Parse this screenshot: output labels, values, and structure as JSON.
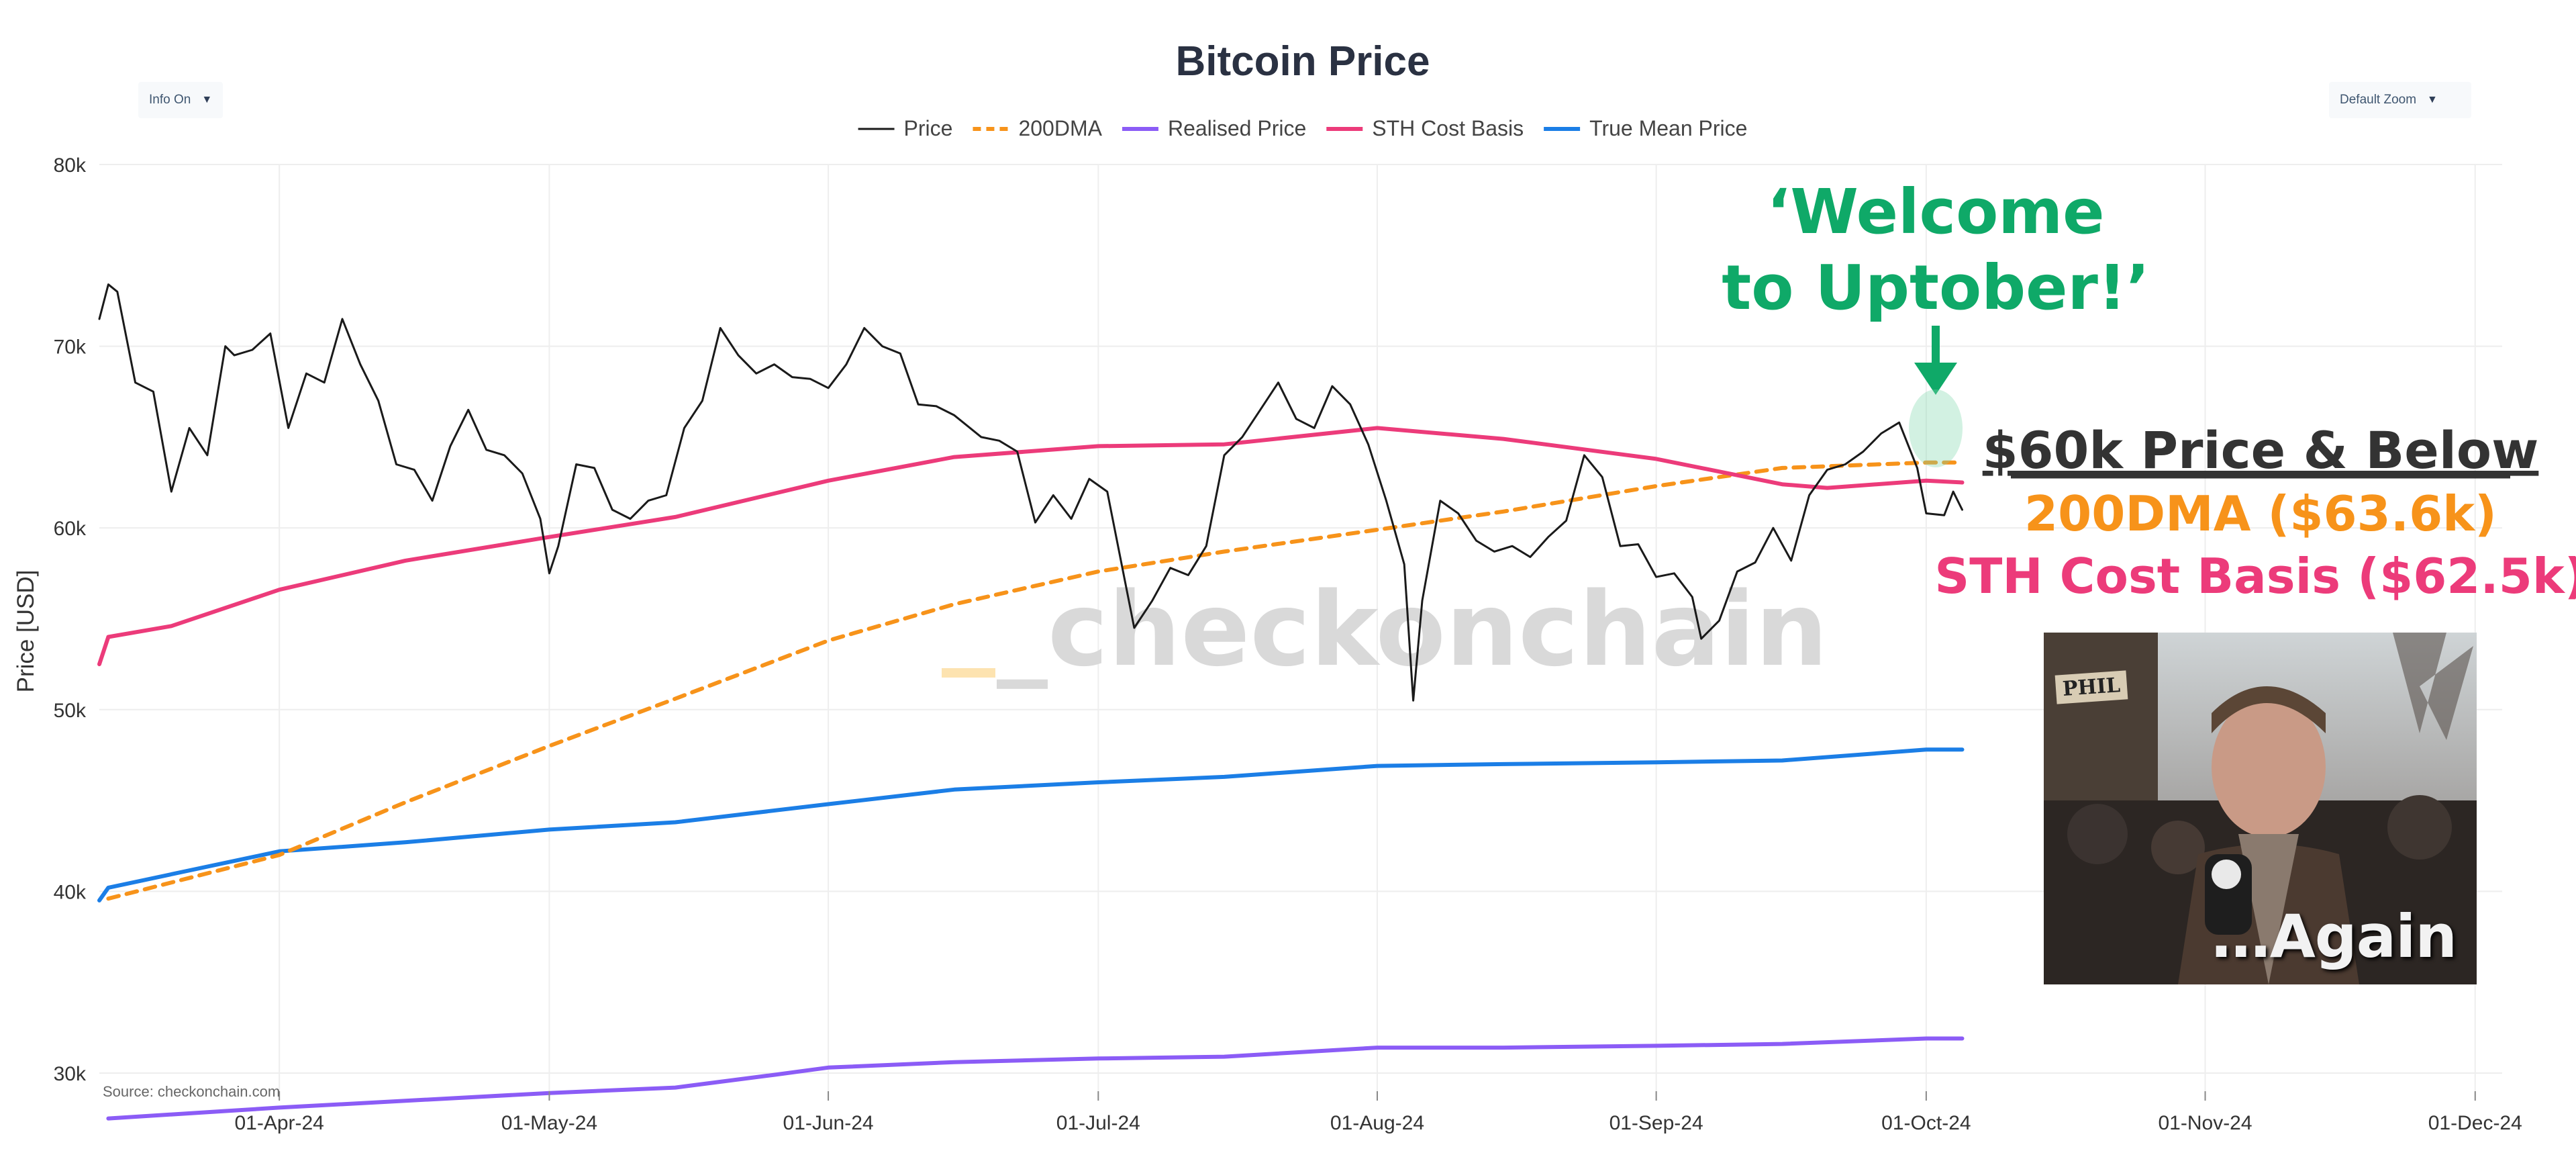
{
  "header": {
    "info_dropdown": "Info On",
    "zoom_dropdown": "Default Zoom"
  },
  "chart_data": {
    "type": "line",
    "title": "Bitcoin Price",
    "ylabel": "Price [USD]",
    "xlabel": "",
    "ylim": [
      29000,
      80000
    ],
    "xlim": [
      "2024-03-12",
      "2024-12-04"
    ],
    "y_scale": "linear",
    "grid": true,
    "legend_position": "top-center",
    "y_ticks": [
      30000,
      40000,
      50000,
      60000,
      70000,
      80000
    ],
    "y_tick_labels": [
      "30k",
      "40k",
      "50k",
      "60k",
      "70k",
      "80k"
    ],
    "x_ticks": [
      "2024-04-01",
      "2024-05-01",
      "2024-06-01",
      "2024-07-01",
      "2024-08-01",
      "2024-09-01",
      "2024-10-01",
      "2024-11-01",
      "2024-12-01"
    ],
    "x_tick_labels": [
      "01-Apr-24",
      "01-May-24",
      "01-Jun-24",
      "01-Jul-24",
      "01-Aug-24",
      "01-Sep-24",
      "01-Oct-24",
      "01-Nov-24",
      "01-Dec-24"
    ],
    "source": "Source: checkonchain.com",
    "watermark": "_checkonchain",
    "series": [
      {
        "name": "Price",
        "color": "#1a1a1a",
        "style": "solid",
        "points": [
          [
            "2024-03-12",
            71500
          ],
          [
            "2024-03-13",
            73400
          ],
          [
            "2024-03-14",
            73000
          ],
          [
            "2024-03-16",
            68000
          ],
          [
            "2024-03-18",
            67500
          ],
          [
            "2024-03-20",
            62000
          ],
          [
            "2024-03-22",
            65500
          ],
          [
            "2024-03-24",
            64000
          ],
          [
            "2024-03-26",
            70000
          ],
          [
            "2024-03-27",
            69500
          ],
          [
            "2024-03-29",
            69800
          ],
          [
            "2024-03-31",
            70700
          ],
          [
            "2024-04-02",
            65500
          ],
          [
            "2024-04-04",
            68500
          ],
          [
            "2024-04-06",
            68000
          ],
          [
            "2024-04-08",
            71500
          ],
          [
            "2024-04-10",
            69000
          ],
          [
            "2024-04-12",
            67000
          ],
          [
            "2024-04-14",
            63500
          ],
          [
            "2024-04-16",
            63200
          ],
          [
            "2024-04-18",
            61500
          ],
          [
            "2024-04-20",
            64500
          ],
          [
            "2024-04-22",
            66500
          ],
          [
            "2024-04-24",
            64300
          ],
          [
            "2024-04-26",
            64000
          ],
          [
            "2024-04-28",
            63000
          ],
          [
            "2024-04-30",
            60500
          ],
          [
            "2024-05-01",
            57500
          ],
          [
            "2024-05-02",
            59000
          ],
          [
            "2024-05-04",
            63500
          ],
          [
            "2024-05-06",
            63300
          ],
          [
            "2024-05-08",
            61000
          ],
          [
            "2024-05-10",
            60500
          ],
          [
            "2024-05-12",
            61500
          ],
          [
            "2024-05-14",
            61800
          ],
          [
            "2024-05-16",
            65500
          ],
          [
            "2024-05-18",
            67000
          ],
          [
            "2024-05-20",
            71000
          ],
          [
            "2024-05-22",
            69500
          ],
          [
            "2024-05-24",
            68500
          ],
          [
            "2024-05-26",
            69000
          ],
          [
            "2024-05-28",
            68300
          ],
          [
            "2024-05-30",
            68200
          ],
          [
            "2024-06-01",
            67700
          ],
          [
            "2024-06-03",
            69000
          ],
          [
            "2024-06-05",
            71000
          ],
          [
            "2024-06-07",
            70000
          ],
          [
            "2024-06-09",
            69600
          ],
          [
            "2024-06-11",
            66800
          ],
          [
            "2024-06-13",
            66700
          ],
          [
            "2024-06-15",
            66200
          ],
          [
            "2024-06-18",
            65000
          ],
          [
            "2024-06-20",
            64800
          ],
          [
            "2024-06-22",
            64200
          ],
          [
            "2024-06-24",
            60300
          ],
          [
            "2024-06-26",
            61800
          ],
          [
            "2024-06-28",
            60500
          ],
          [
            "2024-06-30",
            62700
          ],
          [
            "2024-07-02",
            62000
          ],
          [
            "2024-07-04",
            57000
          ],
          [
            "2024-07-05",
            54500
          ],
          [
            "2024-07-07",
            56000
          ],
          [
            "2024-07-09",
            57800
          ],
          [
            "2024-07-11",
            57400
          ],
          [
            "2024-07-13",
            59000
          ],
          [
            "2024-07-15",
            64000
          ],
          [
            "2024-07-17",
            65000
          ],
          [
            "2024-07-19",
            66500
          ],
          [
            "2024-07-21",
            68000
          ],
          [
            "2024-07-23",
            66000
          ],
          [
            "2024-07-25",
            65500
          ],
          [
            "2024-07-27",
            67800
          ],
          [
            "2024-07-29",
            66800
          ],
          [
            "2024-07-31",
            64600
          ],
          [
            "2024-08-02",
            61500
          ],
          [
            "2024-08-04",
            58000
          ],
          [
            "2024-08-05",
            50500
          ],
          [
            "2024-08-06",
            56000
          ],
          [
            "2024-08-08",
            61500
          ],
          [
            "2024-08-10",
            60800
          ],
          [
            "2024-08-12",
            59300
          ],
          [
            "2024-08-14",
            58700
          ],
          [
            "2024-08-16",
            59000
          ],
          [
            "2024-08-18",
            58400
          ],
          [
            "2024-08-20",
            59500
          ],
          [
            "2024-08-22",
            60400
          ],
          [
            "2024-08-24",
            64000
          ],
          [
            "2024-08-26",
            62800
          ],
          [
            "2024-08-28",
            59000
          ],
          [
            "2024-08-30",
            59100
          ],
          [
            "2024-09-01",
            57300
          ],
          [
            "2024-09-03",
            57500
          ],
          [
            "2024-09-05",
            56200
          ],
          [
            "2024-09-06",
            53900
          ],
          [
            "2024-09-08",
            54900
          ],
          [
            "2024-09-10",
            57600
          ],
          [
            "2024-09-12",
            58100
          ],
          [
            "2024-09-14",
            60000
          ],
          [
            "2024-09-16",
            58200
          ],
          [
            "2024-09-18",
            61800
          ],
          [
            "2024-09-20",
            63200
          ],
          [
            "2024-09-22",
            63500
          ],
          [
            "2024-09-24",
            64200
          ],
          [
            "2024-09-26",
            65200
          ],
          [
            "2024-09-28",
            65800
          ],
          [
            "2024-09-30",
            63300
          ],
          [
            "2024-10-01",
            60800
          ],
          [
            "2024-10-03",
            60700
          ],
          [
            "2024-10-04",
            62000
          ],
          [
            "2024-10-05",
            61000
          ]
        ]
      },
      {
        "name": "200DMA",
        "color": "#f7931a",
        "style": "dash",
        "points": [
          [
            "2024-03-13",
            39600
          ],
          [
            "2024-04-01",
            42000
          ],
          [
            "2024-04-15",
            44900
          ],
          [
            "2024-05-01",
            48000
          ],
          [
            "2024-05-15",
            50600
          ],
          [
            "2024-06-01",
            53800
          ],
          [
            "2024-06-15",
            55800
          ],
          [
            "2024-07-01",
            57600
          ],
          [
            "2024-07-15",
            58700
          ],
          [
            "2024-08-01",
            59900
          ],
          [
            "2024-08-15",
            60900
          ],
          [
            "2024-09-01",
            62300
          ],
          [
            "2024-09-15",
            63300
          ],
          [
            "2024-10-01",
            63600
          ],
          [
            "2024-10-05",
            63600
          ]
        ]
      },
      {
        "name": "Realised Price",
        "color": "#8b5cf6",
        "style": "solid",
        "points": [
          [
            "2024-03-13",
            27500
          ],
          [
            "2024-04-01",
            28100
          ],
          [
            "2024-05-01",
            28900
          ],
          [
            "2024-05-15",
            29200
          ],
          [
            "2024-05-26",
            29900
          ],
          [
            "2024-06-01",
            30300
          ],
          [
            "2024-06-15",
            30600
          ],
          [
            "2024-07-01",
            30800
          ],
          [
            "2024-07-15",
            30900
          ],
          [
            "2024-08-01",
            31400
          ],
          [
            "2024-08-15",
            31400
          ],
          [
            "2024-09-01",
            31500
          ],
          [
            "2024-09-15",
            31600
          ],
          [
            "2024-10-01",
            31900
          ],
          [
            "2024-10-05",
            31900
          ]
        ]
      },
      {
        "name": "STH Cost Basis",
        "color": "#ec3b7a",
        "style": "solid",
        "points": [
          [
            "2024-03-12",
            52500
          ],
          [
            "2024-03-13",
            54000
          ],
          [
            "2024-03-20",
            54600
          ],
          [
            "2024-04-01",
            56600
          ],
          [
            "2024-04-15",
            58200
          ],
          [
            "2024-05-01",
            59500
          ],
          [
            "2024-05-15",
            60600
          ],
          [
            "2024-06-01",
            62600
          ],
          [
            "2024-06-15",
            63900
          ],
          [
            "2024-07-01",
            64500
          ],
          [
            "2024-07-15",
            64600
          ],
          [
            "2024-08-01",
            65500
          ],
          [
            "2024-08-15",
            64900
          ],
          [
            "2024-09-01",
            63800
          ],
          [
            "2024-09-15",
            62400
          ],
          [
            "2024-09-20",
            62200
          ],
          [
            "2024-10-01",
            62600
          ],
          [
            "2024-10-05",
            62500
          ]
        ]
      },
      {
        "name": "True Mean Price",
        "color": "#1b7ee6",
        "style": "solid",
        "points": [
          [
            "2024-03-12",
            39500
          ],
          [
            "2024-03-13",
            40200
          ],
          [
            "2024-04-01",
            42200
          ],
          [
            "2024-04-15",
            42700
          ],
          [
            "2024-05-01",
            43400
          ],
          [
            "2024-05-15",
            43800
          ],
          [
            "2024-06-01",
            44800
          ],
          [
            "2024-06-15",
            45600
          ],
          [
            "2024-07-01",
            46000
          ],
          [
            "2024-07-15",
            46300
          ],
          [
            "2024-08-01",
            46900
          ],
          [
            "2024-08-15",
            47000
          ],
          [
            "2024-09-01",
            47100
          ],
          [
            "2024-09-15",
            47200
          ],
          [
            "2024-10-01",
            47800
          ],
          [
            "2024-10-05",
            47800
          ]
        ]
      }
    ]
  },
  "annotations": {
    "welcome_line1": "‘Welcome",
    "welcome_line2": "to Uptober!’",
    "headline": "$60k Price & Below",
    "dma_label": "200DMA ($63.6k)",
    "sth_label": "STH Cost Basis ($62.5k)",
    "photo_caption": "…Again",
    "photo_sign": "PHIL",
    "welcome_color": "#0fa968",
    "dma_color": "#f7931a",
    "sth_color": "#ec3b7a",
    "headline_color": "#333333"
  }
}
